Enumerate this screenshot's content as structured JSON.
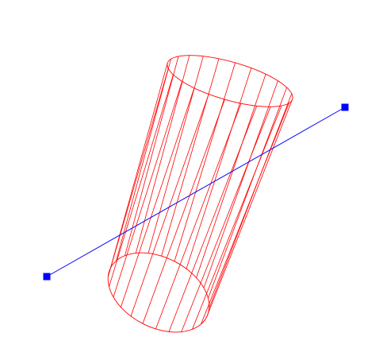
{
  "scene": {
    "background": "#ffffff",
    "cylinder": {
      "color": "#ff0000",
      "style": "wireframe",
      "generator_lines": 24
    },
    "segment": {
      "color": "#0000ff",
      "endpoint_marker": "square",
      "endpoint_color": "#0000ff"
    }
  }
}
